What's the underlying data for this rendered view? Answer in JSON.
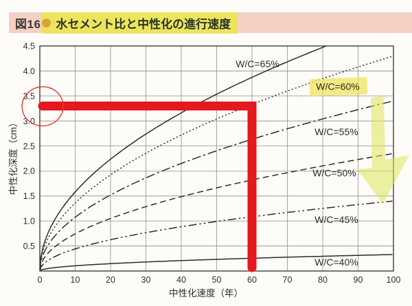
{
  "title": {
    "figure_label": "図16",
    "title_text": "水セメント比と中性化の進行速度"
  },
  "chart_data": {
    "type": "line",
    "title": "水セメント比と中性化の進行速度",
    "xlabel": "中性化速度（年）",
    "ylabel": "中性化深度（cm）",
    "xlim": [
      0,
      100
    ],
    "ylim": [
      0,
      4.5
    ],
    "x_ticks": [
      0,
      10,
      20,
      30,
      40,
      50,
      60,
      70,
      80,
      90,
      100
    ],
    "y_ticks": [
      0.5,
      1.0,
      1.5,
      2.0,
      2.5,
      3.0,
      3.5,
      4.0,
      4.5
    ],
    "grid": true,
    "legend_position": "labels-on-curves",
    "model": "depth_cm = k * sqrt(years)",
    "series": [
      {
        "name": "W/C=65%",
        "k": 0.5,
        "style": "solid",
        "highlighted": false,
        "points": [
          [
            10,
            1.58
          ],
          [
            20,
            2.24
          ],
          [
            30,
            2.74
          ],
          [
            40,
            3.16
          ],
          [
            50,
            3.54
          ],
          [
            60,
            3.87
          ],
          [
            70,
            4.18
          ],
          [
            80,
            4.47
          ]
        ]
      },
      {
        "name": "W/C=60%",
        "k": 0.43,
        "style": "dotted",
        "highlighted": true,
        "points": [
          [
            10,
            1.36
          ],
          [
            20,
            1.92
          ],
          [
            30,
            2.36
          ],
          [
            40,
            2.72
          ],
          [
            50,
            3.04
          ],
          [
            60,
            3.33
          ],
          [
            70,
            3.6
          ],
          [
            80,
            3.85
          ],
          [
            90,
            4.08
          ],
          [
            100,
            4.3
          ]
        ]
      },
      {
        "name": "W/C=55%",
        "k": 0.34,
        "style": "dashdot",
        "highlighted": false,
        "points": [
          [
            10,
            1.08
          ],
          [
            20,
            1.52
          ],
          [
            30,
            1.86
          ],
          [
            40,
            2.15
          ],
          [
            50,
            2.4
          ],
          [
            60,
            2.63
          ],
          [
            70,
            2.84
          ],
          [
            80,
            3.04
          ],
          [
            90,
            3.23
          ],
          [
            100,
            3.4
          ]
        ]
      },
      {
        "name": "W/C=50%",
        "k": 0.235,
        "style": "dashed",
        "highlighted": false,
        "points": [
          [
            10,
            0.74
          ],
          [
            20,
            1.05
          ],
          [
            30,
            1.29
          ],
          [
            40,
            1.49
          ],
          [
            50,
            1.66
          ],
          [
            60,
            1.82
          ],
          [
            70,
            1.97
          ],
          [
            80,
            2.1
          ],
          [
            90,
            2.23
          ],
          [
            100,
            2.35
          ]
        ]
      },
      {
        "name": "W/C=45%",
        "k": 0.14,
        "style": "dashdotdot",
        "highlighted": false,
        "points": [
          [
            10,
            0.44
          ],
          [
            20,
            0.63
          ],
          [
            30,
            0.77
          ],
          [
            40,
            0.89
          ],
          [
            50,
            0.99
          ],
          [
            60,
            1.08
          ],
          [
            70,
            1.17
          ],
          [
            80,
            1.25
          ],
          [
            90,
            1.33
          ],
          [
            100,
            1.4
          ]
        ]
      },
      {
        "name": "W/C=40%",
        "k": 0.033,
        "style": "solid",
        "highlighted": false,
        "points": [
          [
            10,
            0.1
          ],
          [
            20,
            0.15
          ],
          [
            30,
            0.18
          ],
          [
            40,
            0.21
          ],
          [
            50,
            0.23
          ],
          [
            60,
            0.26
          ],
          [
            70,
            0.28
          ],
          [
            80,
            0.3
          ],
          [
            90,
            0.31
          ],
          [
            100,
            0.33
          ]
        ]
      }
    ],
    "annotations": {
      "red_guide": {
        "x_years": 60,
        "y_cm": 3.3,
        "shape": "L-line from y-axis to curve intersection down to x-axis"
      },
      "red_circle_on_y_axis": {
        "y_cm": 3.3
      },
      "yellow_arrow": {
        "direction": "down",
        "points_at": "W/C=60% curve near 90-100 years"
      },
      "highlighted_series": "W/C=60%"
    }
  },
  "colors": {
    "title_bar_bg": "#f6d0c3",
    "highlight_yellow": "#ede45c",
    "annotation_red": "#e5171f",
    "curve": "#2a2a29",
    "grid": "#8d8d8d",
    "frame": "#3c3c3a",
    "bullet_orange": "#dca23f"
  }
}
